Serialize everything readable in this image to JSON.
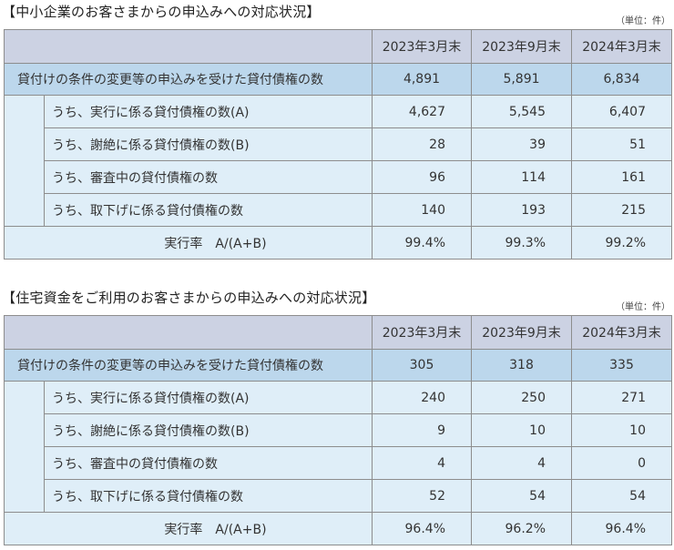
{
  "sections": [
    {
      "title": "【中小企業のお客さまからの申込みへの対応状況】",
      "unit": "（単位：件）",
      "headers": [
        "2023年3月末",
        "2023年9月末",
        "2024年3月末"
      ],
      "main_row": {
        "label": "貸付けの条件の変更等の申込みを受けた貸付債権の数",
        "values": [
          "4,891",
          "5,891",
          "6,834"
        ]
      },
      "sub_rows": [
        {
          "label": "うち、実行に係る貸付債権の数(A)",
          "values": [
            "4,627",
            "5,545",
            "6,407"
          ]
        },
        {
          "label": "うち、謝絶に係る貸付債権の数(B)",
          "values": [
            "28",
            "39",
            "51"
          ]
        },
        {
          "label": "うち、審査中の貸付債権の数",
          "values": [
            "96",
            "114",
            "161"
          ]
        },
        {
          "label": "うち、取下げに係る貸付債権の数",
          "values": [
            "140",
            "193",
            "215"
          ]
        }
      ],
      "rate_row": {
        "label": "実行率　A/(A+B)",
        "values": [
          "99.4%",
          "99.3%",
          "99.2%"
        ]
      }
    },
    {
      "title": "【住宅資金をご利用のお客さまからの申込みへの対応状況】",
      "unit": "（単位：件）",
      "headers": [
        "2023年3月末",
        "2023年9月末",
        "2024年3月末"
      ],
      "main_row": {
        "label": "貸付けの条件の変更等の申込みを受けた貸付債権の数",
        "values": [
          "305",
          "318",
          "335"
        ]
      },
      "sub_rows": [
        {
          "label": "うち、実行に係る貸付債権の数(A)",
          "values": [
            "240",
            "250",
            "271"
          ]
        },
        {
          "label": "うち、謝絶に係る貸付債権の数(B)",
          "values": [
            "9",
            "10",
            "10"
          ]
        },
        {
          "label": "うち、審査中の貸付債権の数",
          "values": [
            "4",
            "4",
            "0"
          ]
        },
        {
          "label": "うち、取下げに係る貸付債権の数",
          "values": [
            "52",
            "54",
            "54"
          ]
        }
      ],
      "rate_row": {
        "label": "実行率　A/(A+B)",
        "values": [
          "96.4%",
          "96.2%",
          "96.4%"
        ]
      }
    }
  ]
}
